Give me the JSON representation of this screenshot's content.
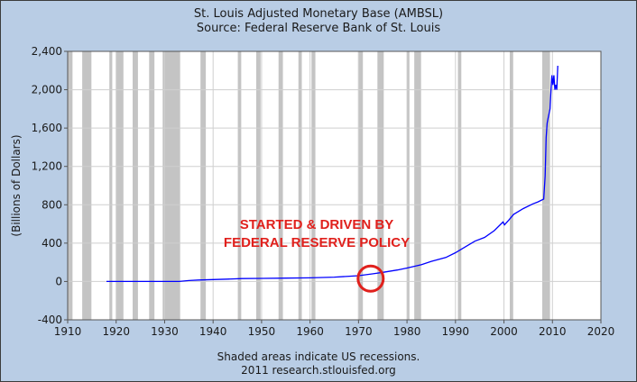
{
  "header": {
    "title": "St. Louis Adjusted Monetary Base (AMBSL)",
    "subtitle": "Source: Federal Reserve Bank of St. Louis"
  },
  "footer": {
    "note": "Shaded areas indicate US recessions.",
    "credit": "2011 research.stlouisfed.org"
  },
  "chart_data": {
    "type": "line",
    "title": "St. Louis Adjusted Monetary Base (AMBSL)",
    "subtitle": "Source: Federal Reserve Bank of St. Louis",
    "xlabel": "",
    "ylabel": "(Billions of Dollars)",
    "xlim": [
      1910,
      2020
    ],
    "ylim": [
      -400,
      2400
    ],
    "xticks": [
      1910,
      1920,
      1930,
      1940,
      1950,
      1960,
      1970,
      1980,
      1990,
      2000,
      2010,
      2020
    ],
    "yticks": [
      -400,
      0,
      400,
      800,
      1200,
      1600,
      2000,
      2400
    ],
    "ytick_labels": [
      "-400",
      "0",
      "400",
      "800",
      "1,200",
      "1,600",
      "2,000",
      "2,400"
    ],
    "grid": true,
    "line_color": "#0000ff",
    "recession_color": "#c4c4c4",
    "series": [
      {
        "x": [
          1918,
          1925,
          1933,
          1935,
          1937,
          1940,
          1943,
          1946,
          1950,
          1955,
          1960,
          1965,
          1970,
          1973,
          1975,
          1978,
          1980,
          1983,
          1985,
          1988,
          1990,
          1992,
          1994,
          1996,
          1998,
          1999.8,
          2000.1,
          2001,
          2002,
          2004,
          2006,
          2007,
          2008.2,
          2008.5,
          2008.7,
          2008.9,
          2009.1,
          2009.3,
          2009.5,
          2009.7,
          2009.9,
          2010.1,
          2010.3,
          2010.5,
          2010.7,
          2010.9,
          2011.1
        ],
        "y": [
          0,
          0,
          0,
          10,
          15,
          20,
          25,
          30,
          32,
          35,
          38,
          45,
          60,
          80,
          95,
          120,
          140,
          175,
          210,
          250,
          300,
          360,
          420,
          460,
          530,
          620,
          590,
          640,
          700,
          760,
          810,
          830,
          860,
          1100,
          1500,
          1650,
          1700,
          1750,
          1800,
          2000,
          2150,
          2050,
          2150,
          2000,
          2050,
          2000,
          2250
        ]
      }
    ],
    "recessions": [
      [
        1910.0,
        1911.0
      ],
      [
        1913.0,
        1914.9
      ],
      [
        1918.6,
        1919.2
      ],
      [
        1920.0,
        1921.5
      ],
      [
        1923.4,
        1924.5
      ],
      [
        1926.8,
        1927.9
      ],
      [
        1929.6,
        1933.2
      ],
      [
        1937.4,
        1938.5
      ],
      [
        1945.1,
        1945.8
      ],
      [
        1948.9,
        1949.8
      ],
      [
        1953.5,
        1954.4
      ],
      [
        1957.6,
        1958.3
      ],
      [
        1960.3,
        1961.1
      ],
      [
        1969.9,
        1970.9
      ],
      [
        1973.9,
        1975.2
      ],
      [
        1980.0,
        1980.5
      ],
      [
        1981.5,
        1982.9
      ],
      [
        1990.5,
        1991.2
      ],
      [
        2001.2,
        2001.9
      ],
      [
        2007.9,
        2009.5
      ]
    ],
    "annotations": [
      {
        "text": "STARTED & DRIVEN BY",
        "color": "#e0201c"
      },
      {
        "text": "FEDERAL RESERVE POLICY",
        "color": "#e0201c"
      }
    ],
    "highlight_circle": {
      "x": 1972.5,
      "y": 30,
      "color": "#e0201c"
    }
  }
}
